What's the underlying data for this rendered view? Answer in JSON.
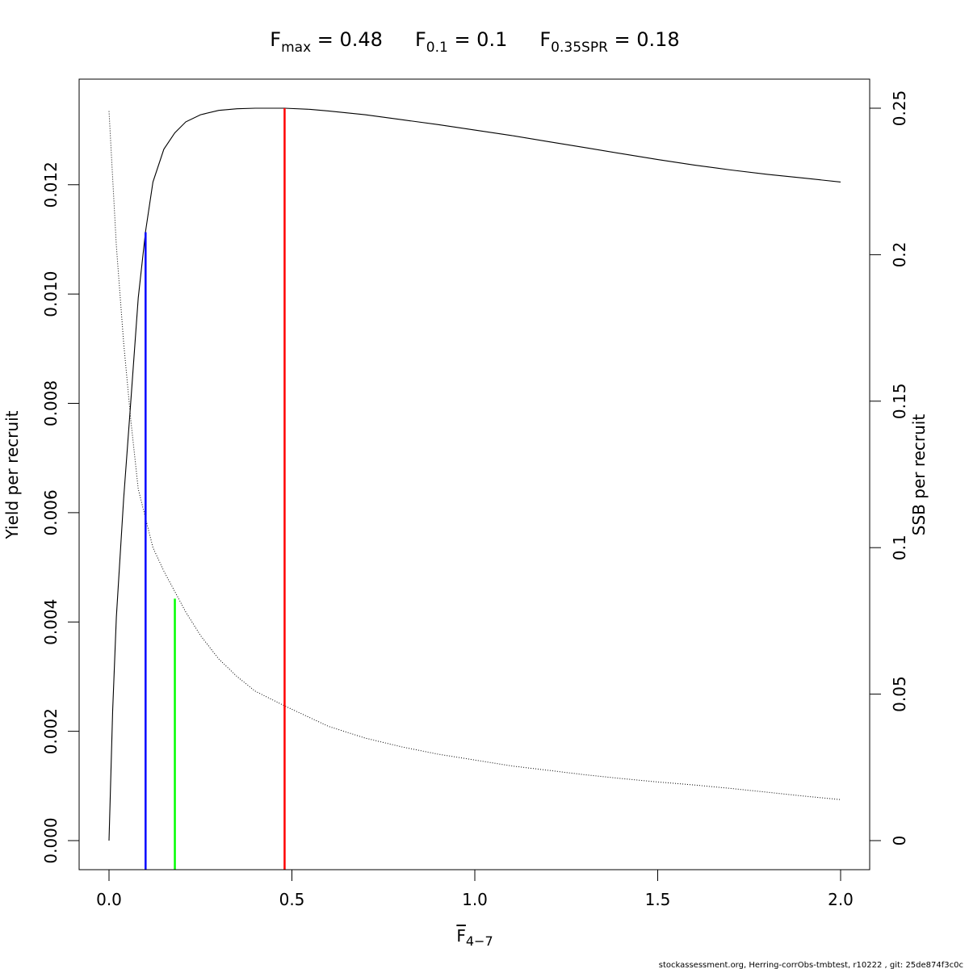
{
  "chart_data": {
    "type": "line",
    "title_parts": [
      {
        "sym": "F",
        "sub": "max",
        "eq": " = 0.48"
      },
      {
        "sym": "F",
        "sub": "0.1",
        "eq": " = 0.1"
      },
      {
        "sym": "F",
        "sub": "0.35SPR",
        "eq": " = 0.18"
      }
    ],
    "xlabel": {
      "sym": "F",
      "sub": "4−7"
    },
    "ylabel_left": "Yield per recruit",
    "ylabel_right": "SSB per recruit",
    "xlim": [
      0,
      2
    ],
    "ylim_left": [
      0,
      0.0134
    ],
    "ylim_right": [
      0,
      0.25
    ],
    "x_ticks": [
      "0.0",
      "0.5",
      "1.0",
      "1.5",
      "2.0"
    ],
    "x_tick_values": [
      0,
      0.5,
      1.0,
      1.5,
      2.0
    ],
    "y_left_ticks": [
      "0.000",
      "0.002",
      "0.004",
      "0.006",
      "0.008",
      "0.010",
      "0.012"
    ],
    "y_left_tick_values": [
      0,
      0.002,
      0.004,
      0.006,
      0.008,
      0.01,
      0.012
    ],
    "y_right_ticks": [
      "0",
      "0.05",
      "0.1",
      "0.15",
      "0.2",
      "0.25"
    ],
    "y_right_tick_values": [
      0,
      0.05,
      0.1,
      0.15,
      0.2,
      0.25
    ],
    "series": [
      {
        "name": "Yield per recruit",
        "axis": "left",
        "style": "solid",
        "color": "#000000",
        "x": [
          0,
          0.01,
          0.02,
          0.04,
          0.06,
          0.08,
          0.1,
          0.12,
          0.15,
          0.18,
          0.21,
          0.25,
          0.3,
          0.35,
          0.4,
          0.48,
          0.55,
          0.6,
          0.7,
          0.8,
          0.9,
          1.0,
          1.1,
          1.2,
          1.3,
          1.4,
          1.5,
          1.6,
          1.7,
          1.8,
          1.9,
          2.0
        ],
        "y": [
          0,
          0.00237,
          0.00409,
          0.00625,
          0.00808,
          0.00993,
          0.01115,
          0.01205,
          0.01265,
          0.01295,
          0.01315,
          0.01328,
          0.01336,
          0.01339,
          0.0134,
          0.0134,
          0.01338,
          0.01335,
          0.01328,
          0.01319,
          0.0131,
          0.013,
          0.0129,
          0.01279,
          0.01268,
          0.01257,
          0.01246,
          0.01236,
          0.01227,
          0.01219,
          0.01212,
          0.01205
        ]
      },
      {
        "name": "SSB per recruit",
        "axis": "right",
        "style": "dotted",
        "color": "#000000",
        "x": [
          0,
          0.02,
          0.04,
          0.06,
          0.08,
          0.1,
          0.12,
          0.15,
          0.18,
          0.21,
          0.25,
          0.3,
          0.35,
          0.4,
          0.48,
          0.6,
          0.7,
          0.8,
          0.9,
          1.0,
          1.1,
          1.2,
          1.3,
          1.4,
          1.5,
          1.6,
          1.7,
          1.8,
          1.9,
          2.0
        ],
        "y": [
          0.249,
          0.203,
          0.17,
          0.143,
          0.12,
          0.11,
          0.1,
          0.092,
          0.085,
          0.078,
          0.07,
          0.062,
          0.056,
          0.051,
          0.046,
          0.039,
          0.035,
          0.032,
          0.0295,
          0.0275,
          0.0255,
          0.024,
          0.0225,
          0.0212,
          0.02,
          0.019,
          0.0178,
          0.0165,
          0.0152,
          0.014
        ]
      }
    ],
    "reference_lines": [
      {
        "label": "F0.1",
        "x": 0.1,
        "y_top": 0.01113,
        "axis": "left",
        "color": "#0000ff"
      },
      {
        "label": "F0.35SPR",
        "x": 0.18,
        "y_top": 0.0826,
        "axis": "right",
        "color": "#00ff00"
      },
      {
        "label": "Fmax",
        "x": 0.48,
        "y_top": 0.0134,
        "axis": "left",
        "color": "#ff0000"
      }
    ],
    "footer": "stockassessment.org, Herring-corrObs-tmbtest, r10222 , git: 25de874f3c0c"
  }
}
